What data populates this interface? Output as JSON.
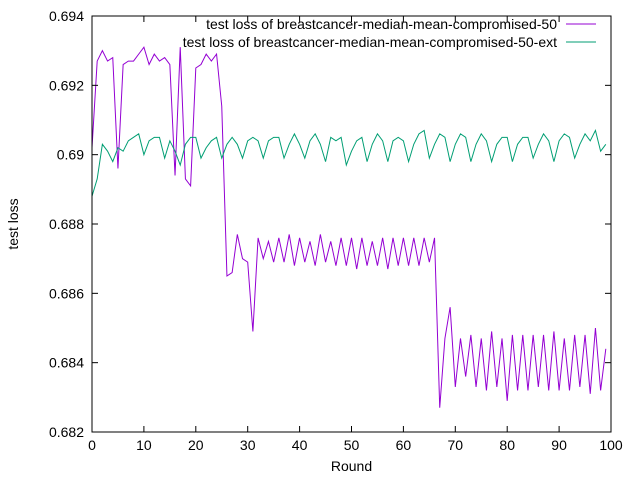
{
  "chart_data": {
    "type": "line",
    "xlabel": "Round",
    "ylabel": "test loss",
    "xlim": [
      0,
      100
    ],
    "ylim": [
      0.682,
      0.694
    ],
    "x_ticks": [
      0,
      10,
      20,
      30,
      40,
      50,
      60,
      70,
      80,
      90,
      100
    ],
    "y_ticks": [
      0.682,
      0.684,
      0.686,
      0.688,
      0.69,
      0.692,
      0.694
    ],
    "x_tick_labels": [
      "0",
      "10",
      "20",
      "30",
      "40",
      "50",
      "60",
      "70",
      "80",
      "90",
      "100"
    ],
    "y_tick_labels": [
      "0.682",
      "0.684",
      "0.686",
      "0.688",
      "0.69",
      "0.692",
      "0.694"
    ],
    "grid": false,
    "legend_position": "top-right",
    "series": [
      {
        "name": "test loss of breastcancer-median-mean-compromised-50",
        "color": "#9400d3",
        "x": [
          0,
          1,
          2,
          3,
          4,
          5,
          6,
          7,
          8,
          9,
          10,
          11,
          12,
          13,
          14,
          15,
          16,
          17,
          18,
          19,
          20,
          21,
          22,
          23,
          24,
          25,
          26,
          27,
          28,
          29,
          30,
          31,
          32,
          33,
          34,
          35,
          36,
          37,
          38,
          39,
          40,
          41,
          42,
          43,
          44,
          45,
          46,
          47,
          48,
          49,
          50,
          51,
          52,
          53,
          54,
          55,
          56,
          57,
          58,
          59,
          60,
          61,
          62,
          63,
          64,
          65,
          66,
          67,
          68,
          69,
          70,
          71,
          72,
          73,
          74,
          75,
          76,
          77,
          78,
          79,
          80,
          81,
          82,
          83,
          84,
          85,
          86,
          87,
          88,
          89,
          90,
          91,
          92,
          93,
          94,
          95,
          96,
          97,
          98,
          99
        ],
        "values": [
          0.6902,
          0.6927,
          0.693,
          0.6927,
          0.6928,
          0.6896,
          0.6926,
          0.6927,
          0.6927,
          0.6929,
          0.6931,
          0.6926,
          0.6929,
          0.6927,
          0.6928,
          0.6926,
          0.6894,
          0.6931,
          0.6893,
          0.6891,
          0.6925,
          0.6926,
          0.6929,
          0.6927,
          0.6929,
          0.6914,
          0.6865,
          0.6866,
          0.6877,
          0.687,
          0.6869,
          0.6849,
          0.6876,
          0.687,
          0.6875,
          0.6869,
          0.6876,
          0.6869,
          0.6877,
          0.6868,
          0.6876,
          0.6869,
          0.6875,
          0.6868,
          0.6877,
          0.6869,
          0.6875,
          0.6868,
          0.6876,
          0.6868,
          0.6876,
          0.6867,
          0.6876,
          0.6868,
          0.6875,
          0.6868,
          0.6876,
          0.6867,
          0.6876,
          0.6868,
          0.6876,
          0.6868,
          0.6876,
          0.6868,
          0.6876,
          0.6869,
          0.6876,
          0.6827,
          0.6847,
          0.6856,
          0.6833,
          0.6847,
          0.6836,
          0.6848,
          0.6833,
          0.6847,
          0.6832,
          0.6849,
          0.6833,
          0.6847,
          0.6829,
          0.6848,
          0.6832,
          0.6848,
          0.6832,
          0.6848,
          0.6833,
          0.6848,
          0.6832,
          0.6849,
          0.6832,
          0.6847,
          0.6832,
          0.6848,
          0.6833,
          0.6848,
          0.6831,
          0.685,
          0.6832,
          0.6844
        ]
      },
      {
        "name": "test loss of breastcancer-median-mean-compromised-50-ext",
        "color": "#009e73",
        "x": [
          0,
          1,
          2,
          3,
          4,
          5,
          6,
          7,
          8,
          9,
          10,
          11,
          12,
          13,
          14,
          15,
          16,
          17,
          18,
          19,
          20,
          21,
          22,
          23,
          24,
          25,
          26,
          27,
          28,
          29,
          30,
          31,
          32,
          33,
          34,
          35,
          36,
          37,
          38,
          39,
          40,
          41,
          42,
          43,
          44,
          45,
          46,
          47,
          48,
          49,
          50,
          51,
          52,
          53,
          54,
          55,
          56,
          57,
          58,
          59,
          60,
          61,
          62,
          63,
          64,
          65,
          66,
          67,
          68,
          69,
          70,
          71,
          72,
          73,
          74,
          75,
          76,
          77,
          78,
          79,
          80,
          81,
          82,
          83,
          84,
          85,
          86,
          87,
          88,
          89,
          90,
          91,
          92,
          93,
          94,
          95,
          96,
          97,
          98,
          99
        ],
        "values": [
          0.6888,
          0.6893,
          0.6903,
          0.6901,
          0.6898,
          0.6902,
          0.6901,
          0.6904,
          0.6905,
          0.6906,
          0.69,
          0.6904,
          0.6905,
          0.6905,
          0.6899,
          0.6904,
          0.6901,
          0.6897,
          0.6903,
          0.6905,
          0.6905,
          0.6899,
          0.6902,
          0.6904,
          0.6905,
          0.6899,
          0.6903,
          0.6905,
          0.6903,
          0.6899,
          0.6904,
          0.6905,
          0.6904,
          0.6899,
          0.6904,
          0.6905,
          0.6905,
          0.6899,
          0.6903,
          0.6906,
          0.6903,
          0.6899,
          0.6904,
          0.6906,
          0.6903,
          0.6898,
          0.6905,
          0.6904,
          0.6905,
          0.6897,
          0.6901,
          0.6904,
          0.6905,
          0.6898,
          0.6903,
          0.6906,
          0.6904,
          0.6898,
          0.6904,
          0.6905,
          0.6904,
          0.6898,
          0.6903,
          0.6906,
          0.6907,
          0.6899,
          0.6903,
          0.6906,
          0.6905,
          0.6898,
          0.6903,
          0.6906,
          0.6905,
          0.6898,
          0.6903,
          0.6906,
          0.6904,
          0.6898,
          0.6903,
          0.6905,
          0.6905,
          0.6898,
          0.6903,
          0.6905,
          0.6905,
          0.6899,
          0.6903,
          0.6906,
          0.6904,
          0.6898,
          0.6904,
          0.6906,
          0.6905,
          0.6899,
          0.6903,
          0.6906,
          0.6904,
          0.6907,
          0.6901,
          0.6903
        ]
      }
    ]
  }
}
